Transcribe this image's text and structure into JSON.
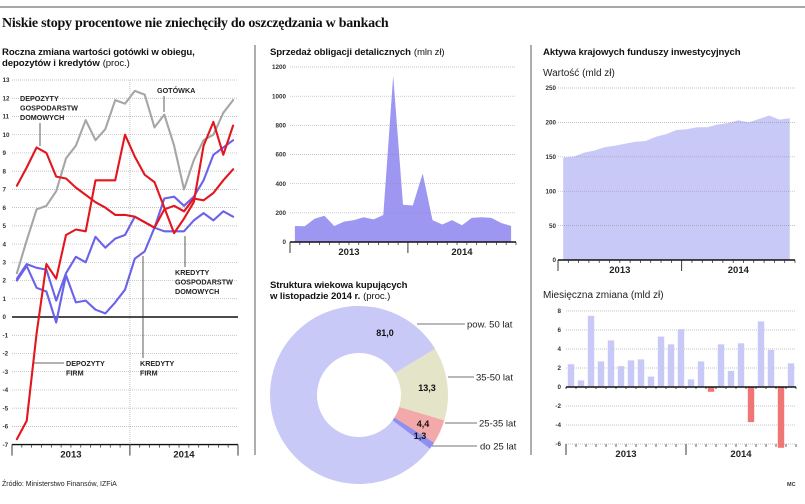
{
  "header": {
    "title": "Niskie stopy procentowe nie zniechęciły do oszczędzania w bankach"
  },
  "footer": {
    "source": "Źródło: Ministerstwo Finansów, IZFiA",
    "credit": "MC"
  },
  "chart_data": [
    {
      "type": "line",
      "title_lines": [
        "Roczna zmiana wartości gotówki w obiegu,",
        "depozytów i kredytów"
      ],
      "unit": "(proc.)",
      "xlabel": "",
      "ylabel": "",
      "ylim": [
        -7,
        13
      ],
      "yticks": [
        13,
        12,
        11,
        10,
        9,
        8,
        7,
        6,
        5,
        4,
        3,
        2,
        1,
        0,
        -1,
        -2,
        -3,
        -4,
        -5,
        -6,
        -7
      ],
      "grid": true,
      "x_years": [
        {
          "label": "2013",
          "points": 12
        },
        {
          "label": "2014",
          "points": 11
        }
      ],
      "series": [
        {
          "label_lines": [
            "GOTÓWKA"
          ],
          "color": "#a6a6a6",
          "values": [
            2.4,
            4.2,
            5.9,
            6.1,
            6.9,
            8.7,
            9.4,
            10.8,
            9.7,
            10.3,
            11.9,
            11.7,
            12.4,
            12.2,
            10.4,
            11.1,
            9.4,
            7.0,
            8.6,
            9.7,
            10.0,
            11.2,
            11.9
          ]
        },
        {
          "label_lines": [
            "DEPOZYTY",
            "GOSPODARSTW",
            "DOMOWYCH"
          ],
          "color": "#e3161e",
          "values": [
            7.2,
            8.2,
            9.3,
            9.0,
            7.7,
            7.6,
            7.1,
            6.7,
            6.3,
            6.0,
            5.6,
            5.6,
            5.5,
            5.2,
            4.9,
            5.9,
            6.1,
            5.8,
            6.5,
            6.4,
            6.8,
            7.5,
            8.1
          ]
        },
        {
          "label_lines": [
            "DEPOZYTY",
            "FIRM"
          ],
          "color": "#e3161e",
          "values": [
            -6.7,
            -5.7,
            -0.9,
            2.9,
            2.1,
            4.5,
            4.8,
            4.7,
            7.5,
            7.5,
            7.5,
            10.0,
            8.8,
            7.8,
            7.4,
            6.0,
            4.6,
            5.4,
            6.3,
            9.4,
            10.7,
            8.9,
            10.5
          ]
        },
        {
          "label_lines": [
            "KREDYTY",
            "GOSPODARSTW",
            "DOMOWYCH"
          ],
          "color": "#6a62ea",
          "values": [
            2.1,
            2.9,
            2.7,
            2.6,
            0.9,
            2.4,
            3.3,
            3.0,
            4.4,
            3.8,
            4.3,
            4.5,
            5.5,
            5.2,
            4.9,
            4.7,
            4.7,
            4.7,
            5.3,
            5.7,
            5.3,
            5.8,
            5.5
          ]
        },
        {
          "label_lines": [
            "KREDYTY",
            "FIRM"
          ],
          "color": "#6a62ea",
          "values": [
            2.0,
            2.8,
            1.6,
            1.4,
            -0.3,
            2.3,
            0.8,
            0.9,
            0.4,
            0.2,
            0.8,
            1.5,
            3.2,
            3.6,
            4.9,
            6.5,
            6.6,
            6.1,
            6.6,
            7.5,
            8.9,
            9.3,
            9.7
          ]
        }
      ]
    },
    {
      "type": "area",
      "title": "Sprzedaż obligacji detalicznych",
      "unit": "(mln zł)",
      "xlabel": "",
      "ylabel": "",
      "ylim": [
        0,
        1200
      ],
      "yticks": [
        1200,
        1000,
        800,
        600,
        400,
        200,
        0
      ],
      "grid": true,
      "x_years": [
        {
          "label": "2013",
          "points": 12
        },
        {
          "label": "2014",
          "points": 11
        }
      ],
      "color": "#9d97f2",
      "values": [
        110,
        108,
        160,
        180,
        110,
        140,
        150,
        170,
        155,
        185,
        1140,
        255,
        250,
        470,
        150,
        120,
        150,
        115,
        165,
        170,
        165,
        130,
        110
      ]
    },
    {
      "type": "pie",
      "title_lines": [
        "Struktura wiekowa kupujących",
        "w listopadzie 2014 r."
      ],
      "unit": "(proc.)",
      "slices": [
        {
          "label": "pow. 50 lat",
          "value": 81.0,
          "display": "81,0",
          "color": "#c9c9f7"
        },
        {
          "label": "35-50 lat",
          "value": 13.3,
          "display": "13,3",
          "color": "#e4e4c8"
        },
        {
          "label": "25-35 lat",
          "value": 4.4,
          "display": "4,4",
          "color": "#f3a9a9"
        },
        {
          "label": "do 25 lat",
          "value": 1.3,
          "display": "1,3",
          "color": "#8f8ff0"
        }
      ]
    },
    {
      "type": "area",
      "title": "Aktywa krajowych funduszy inwestycyjnych",
      "subtitle": "Wartość (mld zł)",
      "xlabel": "",
      "ylabel": "",
      "ylim": [
        0,
        250
      ],
      "yticks": [
        250,
        200,
        150,
        100,
        50,
        0
      ],
      "grid": true,
      "x_years": [
        {
          "label": "2013",
          "points": 12
        },
        {
          "label": "2014",
          "points": 11
        }
      ],
      "color": "#c9c9f7",
      "values": [
        149,
        150,
        156,
        159,
        164,
        166,
        169,
        172,
        173,
        179,
        183,
        189,
        190,
        193,
        193,
        197,
        199,
        203,
        200,
        205,
        210,
        204,
        206
      ]
    },
    {
      "type": "bar",
      "subtitle": "Miesięczna zmiana (mld zł)",
      "xlabel": "",
      "ylabel": "",
      "ylim": [
        -6,
        8
      ],
      "yticks": [
        8,
        6,
        4,
        2,
        0,
        -2,
        -4,
        -6
      ],
      "grid": true,
      "x_years": [
        {
          "label": "2013",
          "points": 12
        },
        {
          "label": "2014",
          "points": 11
        }
      ],
      "positive_color": "#c9c9f7",
      "negative_color": "#f07575",
      "values": [
        2.4,
        0.7,
        7.5,
        2.7,
        4.9,
        2.2,
        2.8,
        2.9,
        1.1,
        5.3,
        4.5,
        6.1,
        0.8,
        2.7,
        -0.5,
        4.5,
        1.7,
        4.6,
        -3.7,
        6.9,
        3.9,
        -6.4,
        2.5
      ]
    }
  ]
}
